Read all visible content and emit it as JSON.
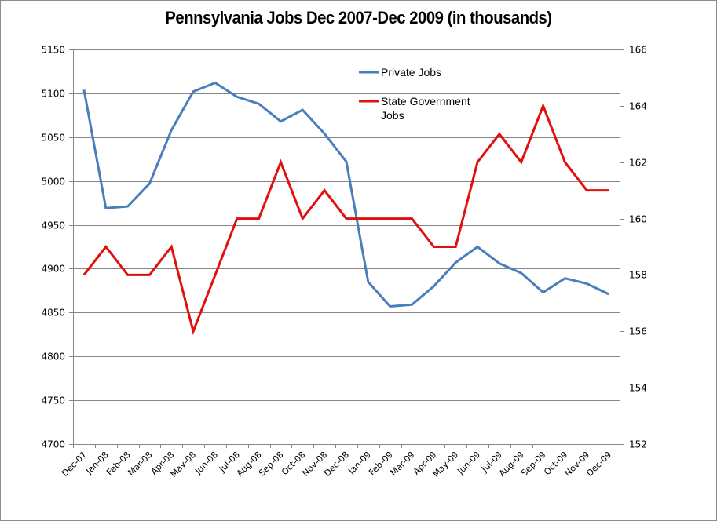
{
  "chart_data": {
    "type": "line",
    "title": "Pennsylvania Jobs Dec 2007-Dec 2009 (in thousands)",
    "xlabel": "",
    "ylabel": "",
    "y2label": "",
    "categories": [
      "Dec-07",
      "Jan-08",
      "Feb-08",
      "Mar-08",
      "Apr-08",
      "May-08",
      "Jun-08",
      "Jul-08",
      "Aug-08",
      "Sep-08",
      "Oct-08",
      "Nov-08",
      "Dec-08",
      "Jan-09",
      "Feb-09",
      "Mar-09",
      "Apr-09",
      "May-09",
      "Jun-09",
      "Jul-09",
      "Aug-09",
      "Sep-09",
      "Oct-09",
      "Nov-09",
      "Dec-09"
    ],
    "series": [
      {
        "name": "Private Jobs",
        "axis": "left",
        "color": "#4a7ebb",
        "values": [
          5104,
          4969,
          4971,
          4997,
          5058,
          5102,
          5112,
          5096,
          5088,
          5068,
          5081,
          5054,
          5022,
          4885,
          4857,
          4859,
          4880,
          4907,
          4925,
          4906,
          4895,
          4873,
          4889,
          4883,
          4871
        ]
      },
      {
        "name": "State Government Jobs",
        "axis": "right",
        "color": "#e0100f",
        "values": [
          158,
          159,
          158,
          158,
          159,
          156,
          158,
          160,
          160,
          162,
          160,
          161,
          160,
          160,
          160,
          160,
          159,
          159,
          162,
          163,
          162,
          164,
          162,
          161,
          161
        ]
      }
    ],
    "ylim": [
      4700,
      5150
    ],
    "yticks": [
      4700,
      4750,
      4800,
      4850,
      4900,
      4950,
      5000,
      5050,
      5100,
      5150
    ],
    "y2lim": [
      152,
      166
    ],
    "y2ticks": [
      152,
      154,
      156,
      158,
      160,
      162,
      164,
      166
    ],
    "grid": true,
    "legend_position": "top-center-inside"
  },
  "legend": {
    "items": [
      {
        "label_lines": [
          "Private Jobs"
        ],
        "color": "#4a7ebb"
      },
      {
        "label_lines": [
          "State Government",
          "Jobs"
        ],
        "color": "#e0100f"
      }
    ]
  }
}
